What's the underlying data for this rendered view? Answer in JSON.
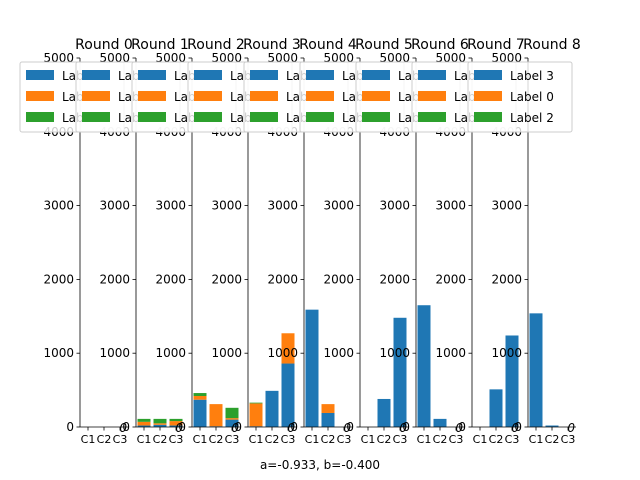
{
  "chart_data": {
    "type": "bar",
    "stacked": true,
    "xlabel": "a=-0.933, b=-0.400",
    "ylim": [
      0,
      5000
    ],
    "yticks": [
      0,
      1000,
      2000,
      3000,
      4000,
      5000
    ],
    "categories": [
      "C1",
      "C2",
      "C3"
    ],
    "legend_placement": "top-left",
    "legend": [
      {
        "name": "Label 3",
        "color": "#1f77b4"
      },
      {
        "name": "Label 0",
        "color": "#ff7f0e"
      },
      {
        "name": "Label 2",
        "color": "#2ca02c"
      }
    ],
    "corner_label": "0",
    "panels": [
      {
        "title": "Round 0",
        "series": [
          {
            "name": "Label 3",
            "values": [
              0,
              0,
              0
            ]
          },
          {
            "name": "Label 0",
            "values": [
              0,
              0,
              0
            ]
          },
          {
            "name": "Label 2",
            "values": [
              0,
              0,
              0
            ]
          }
        ]
      },
      {
        "title": "Round 1",
        "series": [
          {
            "name": "Label 3",
            "values": [
              20,
              30,
              20
            ]
          },
          {
            "name": "Label 0",
            "values": [
              50,
              20,
              60
            ]
          },
          {
            "name": "Label 2",
            "values": [
              40,
              60,
              30
            ]
          }
        ]
      },
      {
        "title": "Round 2",
        "series": [
          {
            "name": "Label 3",
            "values": [
              370,
              10,
              100
            ]
          },
          {
            "name": "Label 0",
            "values": [
              50,
              300,
              20
            ]
          },
          {
            "name": "Label 2",
            "values": [
              40,
              0,
              140
            ]
          }
        ]
      },
      {
        "title": "Round 3",
        "series": [
          {
            "name": "Label 3",
            "values": [
              10,
              490,
              860
            ]
          },
          {
            "name": "Label 0",
            "values": [
              310,
              0,
              410
            ]
          },
          {
            "name": "Label 2",
            "values": [
              10,
              0,
              0
            ]
          }
        ]
      },
      {
        "title": "Round 4",
        "series": [
          {
            "name": "Label 3",
            "values": [
              1590,
              190,
              0
            ]
          },
          {
            "name": "Label 0",
            "values": [
              0,
              120,
              0
            ]
          },
          {
            "name": "Label 2",
            "values": [
              0,
              0,
              0
            ]
          }
        ]
      },
      {
        "title": "Round 5",
        "series": [
          {
            "name": "Label 3",
            "values": [
              0,
              380,
              1480
            ]
          },
          {
            "name": "Label 0",
            "values": [
              0,
              0,
              0
            ]
          },
          {
            "name": "Label 2",
            "values": [
              0,
              0,
              0
            ]
          }
        ]
      },
      {
        "title": "Round 6",
        "series": [
          {
            "name": "Label 3",
            "values": [
              1650,
              110,
              0
            ]
          },
          {
            "name": "Label 0",
            "values": [
              0,
              0,
              0
            ]
          },
          {
            "name": "Label 2",
            "values": [
              0,
              0,
              0
            ]
          }
        ]
      },
      {
        "title": "Round 7",
        "series": [
          {
            "name": "Label 3",
            "values": [
              0,
              510,
              1240
            ]
          },
          {
            "name": "Label 0",
            "values": [
              0,
              0,
              0
            ]
          },
          {
            "name": "Label 2",
            "values": [
              0,
              0,
              0
            ]
          }
        ]
      },
      {
        "title": "Round 8",
        "series": [
          {
            "name": "Label 3",
            "values": [
              1540,
              20,
              0
            ]
          },
          {
            "name": "Label 0",
            "values": [
              0,
              0,
              0
            ]
          },
          {
            "name": "Label 2",
            "values": [
              0,
              0,
              0
            ]
          }
        ]
      }
    ]
  }
}
